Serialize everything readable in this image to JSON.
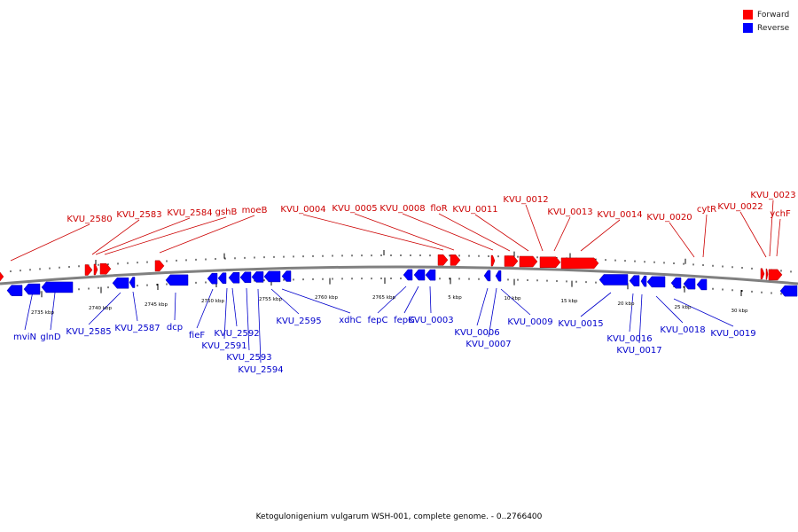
{
  "legend": {
    "forward_label": "Forward",
    "reverse_label": "Reverse",
    "forward_color": "#ff0000",
    "reverse_color": "#0000ff"
  },
  "caption": "Ketogulonigenium vulgarum WSH-001, complete genome. - 0..2766400",
  "colors": {
    "backbone": "#808080",
    "forward_label": "#cc0000",
    "reverse_label": "#0000cc",
    "tick": "#000000"
  },
  "scale_labels": [
    "2735 kbp",
    "2740 kbp",
    "2745 kbp",
    "2750 kbp",
    "2755 kbp",
    "2760 kbp",
    "2765 kbp",
    "5 kbp",
    "10 kbp",
    "15 kbp",
    "20 kbp",
    "25 kbp",
    "30 kbp"
  ],
  "forward_genes": [
    "KVU_2580",
    "KVU_2583",
    "KVU_2584",
    "gshB",
    "moeB",
    "KVU_0004",
    "KVU_0005",
    "KVU_0008",
    "floR",
    "KVU_0011",
    "KVU_0012",
    "KVU_0013",
    "KVU_0014",
    "KVU_0020",
    "cytR",
    "KVU_0022",
    "KVU_0023",
    "ychF"
  ],
  "reverse_genes": [
    "mviN",
    "glnD",
    "KVU_2585",
    "KVU_2587",
    "dcp",
    "fieF",
    "KVU_2591",
    "KVU_2592",
    "KVU_2593",
    "KVU_2594",
    "KVU_2595",
    "xdhC",
    "fepC",
    "fepG",
    "KVU_0003",
    "KVU_0006",
    "KVU_0007",
    "KVU_0009",
    "KVU_0015",
    "KVU_0016",
    "KVU_0017",
    "KVU_0018",
    "KVU_0019"
  ]
}
